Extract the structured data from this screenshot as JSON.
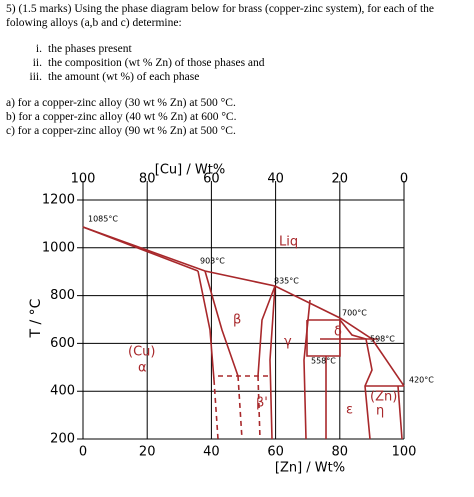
{
  "document": {
    "question": "5) (1.5 marks) Using the phase diagram below for brass (copper-zinc system), for each of the folowing alloys (a,b and c) determine:",
    "item_markers": [
      "i.",
      "ii.",
      "iii."
    ],
    "items": [
      "the phases present",
      "the composition (wt % Zn) of those phases and",
      "the amount (wt %) of each phase"
    ],
    "parts": [
      "a) for a copper-zinc alloy (30 wt % Zn) at 500 °C.",
      "b) for a copper-zinc alloy (40 wt % Zn) at 600 °C.",
      "c) for a copper-zinc alloy (90 wt % Zn) at 500 °C."
    ]
  },
  "figure": {
    "top_axis_label": "[Cu] / Wt%",
    "top_xlim": [
      100,
      0
    ],
    "top_xticks": [
      100,
      80,
      60,
      40,
      20,
      0
    ],
    "x_label": "[Zn] / Wt%",
    "xlim": [
      0,
      100
    ],
    "xticks": [
      0,
      20,
      40,
      60,
      80,
      100
    ],
    "y_label": "T / °C",
    "ylim": [
      200,
      1200
    ],
    "yticks": [
      200,
      400,
      600,
      800,
      1000,
      1200
    ],
    "annotations": [
      "1085°C",
      "903°C",
      "835°C",
      "700°C",
      "598°C",
      "558°C",
      "420°C",
      "Liq",
      "β",
      "γ",
      "δ",
      "(Cu)",
      "α",
      "β'",
      "ε",
      "(Zn)",
      "η"
    ]
  }
}
